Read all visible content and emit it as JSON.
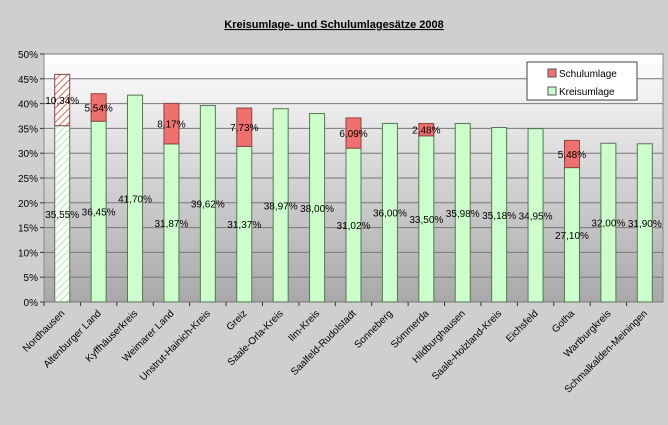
{
  "chart_data": {
    "type": "bar",
    "stacked": true,
    "title": "Kreisumlage- und Schulumlagesätze 2008",
    "xlabel": "",
    "ylabel": "",
    "ylim": [
      0,
      50
    ],
    "yticks": [
      "0%",
      "5%",
      "10%",
      "15%",
      "20%",
      "25%",
      "30%",
      "35%",
      "40%",
      "45%",
      "50%"
    ],
    "grid": true,
    "legend_position": "top-right",
    "categories": [
      "Nordhausen",
      "Altenburger Land",
      "Kyffhäuserkreis",
      "Weimarer Land",
      "Unstrut-Hainich-Kreis",
      "Greiz",
      "Saale-Orla-Kreis",
      "Ilm-Kreis",
      "Saalfeld-Rudolstadt",
      "Sonneberg",
      "Sömmerda",
      "Hildburghausen",
      "Saale-Holzland-Kreis",
      "Eichsfeld",
      "Gotha",
      "Wartburgkreis",
      "Schmalkalden-Meiningen"
    ],
    "series": [
      {
        "name": "Kreisumlage",
        "color": "#ccffcc",
        "values": [
          35.55,
          36.45,
          41.7,
          31.87,
          39.62,
          31.37,
          38.97,
          38.0,
          31.02,
          36.0,
          33.5,
          35.98,
          35.18,
          34.95,
          27.1,
          32.0,
          31.9
        ],
        "labels": [
          "35,55%",
          "36,45%",
          "41,70%",
          "31,87%",
          "39,62%",
          "31,37%",
          "38,97%",
          "38,00%",
          "31,02%",
          "36,00%",
          "33,50%",
          "35,98%",
          "35,18%",
          "34,95%",
          "27,10%",
          "32,00%",
          "31,90%"
        ]
      },
      {
        "name": "Schulumlage",
        "color": "#f07070",
        "values": [
          10.34,
          5.54,
          null,
          8.17,
          null,
          7.73,
          null,
          null,
          6.09,
          null,
          2.48,
          null,
          null,
          null,
          5.48,
          null,
          null
        ],
        "labels": [
          "10,34%",
          "5,54%",
          null,
          "8,17%",
          null,
          "7,73%",
          null,
          null,
          "6,09%",
          null,
          "2,48%",
          null,
          null,
          null,
          "5,48%",
          null,
          null
        ]
      }
    ],
    "hatched_categories": [
      "Nordhausen"
    ]
  }
}
